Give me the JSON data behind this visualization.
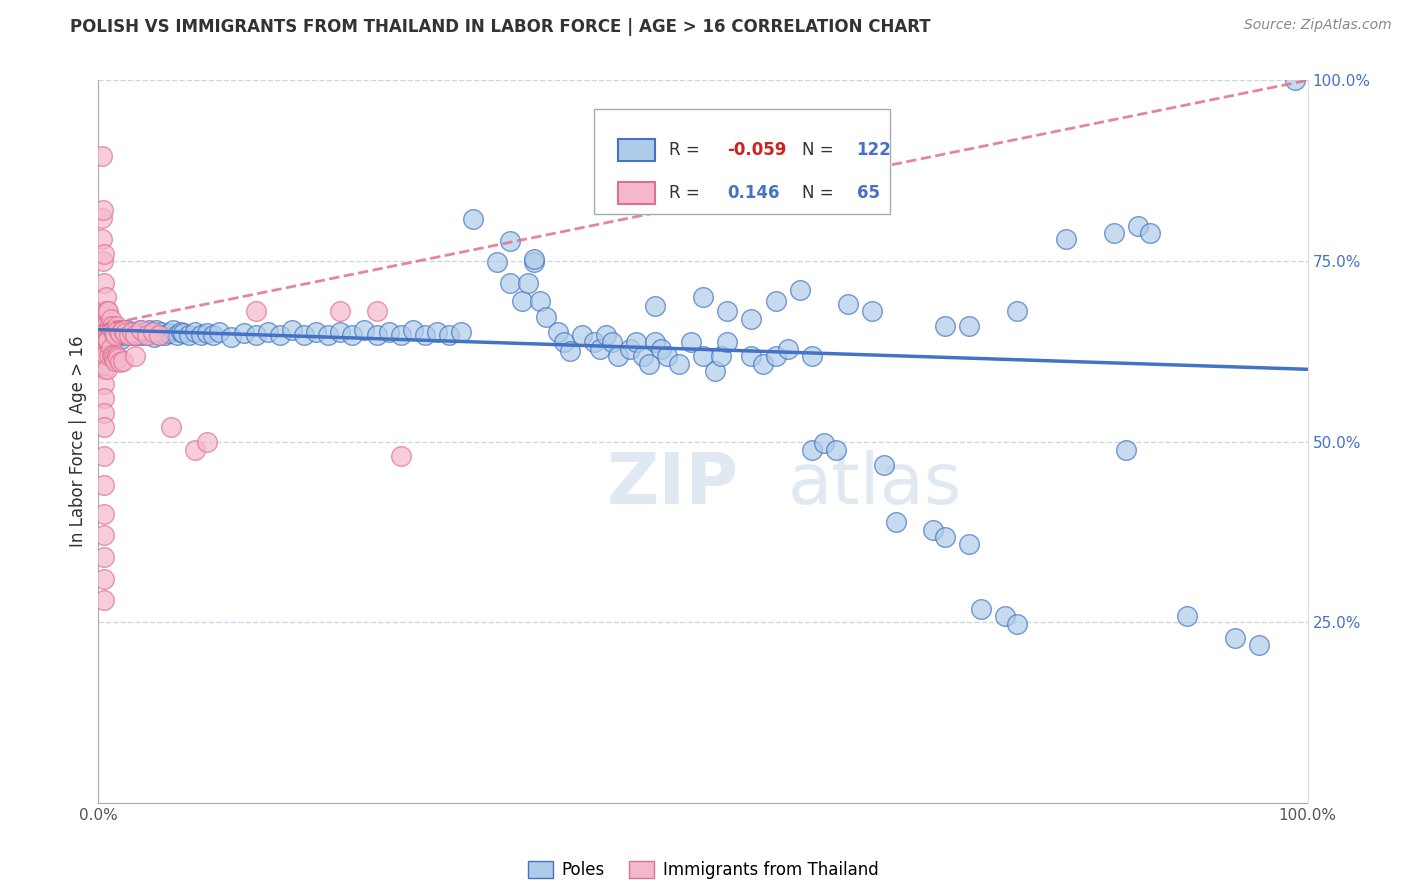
{
  "title": "POLISH VS IMMIGRANTS FROM THAILAND IN LABOR FORCE | AGE > 16 CORRELATION CHART",
  "source_text": "Source: ZipAtlas.com",
  "ylabel": "In Labor Force | Age > 16",
  "xlim": [
    0,
    1
  ],
  "ylim": [
    0,
    1
  ],
  "blue_R": "-0.059",
  "blue_N": "122",
  "pink_R": "0.146",
  "pink_N": "65",
  "legend_labels": [
    "Poles",
    "Immigrants from Thailand"
  ],
  "blue_color": "#aecce8",
  "pink_color": "#f5b8cb",
  "blue_line_color": "#4472c4",
  "pink_line_color": "#e07090",
  "watermark_zip": "ZIP",
  "watermark_atlas": "atlas",
  "background_color": "#ffffff",
  "grid_color": "#c8d8e8",
  "blue_dots": [
    [
      0.002,
      0.66
    ],
    [
      0.002,
      0.65
    ],
    [
      0.002,
      0.64
    ],
    [
      0.002,
      0.635
    ],
    [
      0.002,
      0.63
    ],
    [
      0.002,
      0.625
    ],
    [
      0.002,
      0.62
    ],
    [
      0.002,
      0.615
    ],
    [
      0.002,
      0.61
    ],
    [
      0.002,
      0.605
    ],
    [
      0.003,
      0.66
    ],
    [
      0.003,
      0.65
    ],
    [
      0.003,
      0.64
    ],
    [
      0.003,
      0.63
    ],
    [
      0.003,
      0.625
    ],
    [
      0.004,
      0.655
    ],
    [
      0.004,
      0.645
    ],
    [
      0.004,
      0.635
    ],
    [
      0.005,
      0.65
    ],
    [
      0.005,
      0.64
    ],
    [
      0.006,
      0.66
    ],
    [
      0.006,
      0.645
    ],
    [
      0.007,
      0.655
    ],
    [
      0.007,
      0.64
    ],
    [
      0.008,
      0.65
    ],
    [
      0.008,
      0.638
    ],
    [
      0.009,
      0.648
    ],
    [
      0.01,
      0.655
    ],
    [
      0.01,
      0.642
    ],
    [
      0.011,
      0.652
    ],
    [
      0.012,
      0.648
    ],
    [
      0.013,
      0.655
    ],
    [
      0.013,
      0.642
    ],
    [
      0.014,
      0.65
    ],
    [
      0.015,
      0.645
    ],
    [
      0.016,
      0.652
    ],
    [
      0.017,
      0.648
    ],
    [
      0.018,
      0.655
    ],
    [
      0.019,
      0.642
    ],
    [
      0.02,
      0.65
    ],
    [
      0.022,
      0.648
    ],
    [
      0.024,
      0.655
    ],
    [
      0.026,
      0.65
    ],
    [
      0.028,
      0.648
    ],
    [
      0.03,
      0.652
    ],
    [
      0.032,
      0.648
    ],
    [
      0.034,
      0.655
    ],
    [
      0.036,
      0.648
    ],
    [
      0.038,
      0.652
    ],
    [
      0.04,
      0.648
    ],
    [
      0.042,
      0.655
    ],
    [
      0.044,
      0.65
    ],
    [
      0.046,
      0.645
    ],
    [
      0.048,
      0.655
    ],
    [
      0.05,
      0.648
    ],
    [
      0.052,
      0.652
    ],
    [
      0.055,
      0.648
    ],
    [
      0.058,
      0.65
    ],
    [
      0.062,
      0.655
    ],
    [
      0.065,
      0.648
    ],
    [
      0.068,
      0.652
    ],
    [
      0.07,
      0.65
    ],
    [
      0.075,
      0.648
    ],
    [
      0.08,
      0.652
    ],
    [
      0.085,
      0.648
    ],
    [
      0.09,
      0.65
    ],
    [
      0.095,
      0.648
    ],
    [
      0.1,
      0.652
    ],
    [
      0.11,
      0.645
    ],
    [
      0.12,
      0.65
    ],
    [
      0.13,
      0.648
    ],
    [
      0.14,
      0.652
    ],
    [
      0.15,
      0.648
    ],
    [
      0.16,
      0.655
    ],
    [
      0.17,
      0.648
    ],
    [
      0.18,
      0.652
    ],
    [
      0.19,
      0.648
    ],
    [
      0.2,
      0.652
    ],
    [
      0.21,
      0.648
    ],
    [
      0.22,
      0.655
    ],
    [
      0.23,
      0.648
    ],
    [
      0.24,
      0.652
    ],
    [
      0.25,
      0.648
    ],
    [
      0.26,
      0.655
    ],
    [
      0.27,
      0.648
    ],
    [
      0.28,
      0.652
    ],
    [
      0.29,
      0.648
    ],
    [
      0.3,
      0.652
    ],
    [
      0.33,
      0.748
    ],
    [
      0.34,
      0.72
    ],
    [
      0.35,
      0.695
    ],
    [
      0.355,
      0.72
    ],
    [
      0.36,
      0.748
    ],
    [
      0.365,
      0.695
    ],
    [
      0.37,
      0.672
    ],
    [
      0.38,
      0.652
    ],
    [
      0.385,
      0.638
    ],
    [
      0.39,
      0.625
    ],
    [
      0.4,
      0.648
    ],
    [
      0.41,
      0.638
    ],
    [
      0.415,
      0.628
    ],
    [
      0.42,
      0.648
    ],
    [
      0.425,
      0.638
    ],
    [
      0.43,
      0.618
    ],
    [
      0.44,
      0.628
    ],
    [
      0.445,
      0.638
    ],
    [
      0.45,
      0.618
    ],
    [
      0.455,
      0.608
    ],
    [
      0.46,
      0.638
    ],
    [
      0.465,
      0.628
    ],
    [
      0.47,
      0.618
    ],
    [
      0.48,
      0.608
    ],
    [
      0.49,
      0.638
    ],
    [
      0.5,
      0.618
    ],
    [
      0.51,
      0.598
    ],
    [
      0.515,
      0.618
    ],
    [
      0.52,
      0.638
    ],
    [
      0.54,
      0.618
    ],
    [
      0.55,
      0.608
    ],
    [
      0.56,
      0.618
    ],
    [
      0.57,
      0.628
    ],
    [
      0.59,
      0.618
    ],
    [
      0.31,
      0.808
    ],
    [
      0.34,
      0.778
    ],
    [
      0.36,
      0.752
    ],
    [
      0.46,
      0.688
    ],
    [
      0.5,
      0.7
    ],
    [
      0.52,
      0.68
    ],
    [
      0.54,
      0.67
    ],
    [
      0.56,
      0.695
    ],
    [
      0.58,
      0.71
    ],
    [
      0.62,
      0.69
    ],
    [
      0.64,
      0.68
    ],
    [
      0.7,
      0.66
    ],
    [
      0.72,
      0.66
    ],
    [
      0.76,
      0.68
    ],
    [
      0.8,
      0.78
    ],
    [
      0.84,
      0.788
    ],
    [
      0.85,
      0.488
    ],
    [
      0.86,
      0.798
    ],
    [
      0.87,
      0.788
    ],
    [
      0.59,
      0.488
    ],
    [
      0.6,
      0.498
    ],
    [
      0.61,
      0.488
    ],
    [
      0.65,
      0.468
    ],
    [
      0.66,
      0.388
    ],
    [
      0.69,
      0.378
    ],
    [
      0.7,
      0.368
    ],
    [
      0.72,
      0.358
    ],
    [
      0.73,
      0.268
    ],
    [
      0.75,
      0.258
    ],
    [
      0.76,
      0.248
    ],
    [
      0.9,
      0.258
    ],
    [
      0.94,
      0.228
    ],
    [
      0.96,
      0.218
    ],
    [
      0.99,
      1.0
    ]
  ],
  "pink_dots": [
    [
      0.003,
      0.895
    ],
    [
      0.003,
      0.81
    ],
    [
      0.003,
      0.78
    ],
    [
      0.004,
      0.75
    ],
    [
      0.004,
      0.82
    ],
    [
      0.005,
      0.76
    ],
    [
      0.005,
      0.72
    ],
    [
      0.005,
      0.68
    ],
    [
      0.005,
      0.66
    ],
    [
      0.005,
      0.64
    ],
    [
      0.005,
      0.62
    ],
    [
      0.005,
      0.6
    ],
    [
      0.005,
      0.58
    ],
    [
      0.005,
      0.56
    ],
    [
      0.005,
      0.54
    ],
    [
      0.005,
      0.52
    ],
    [
      0.005,
      0.48
    ],
    [
      0.005,
      0.44
    ],
    [
      0.005,
      0.4
    ],
    [
      0.005,
      0.37
    ],
    [
      0.005,
      0.34
    ],
    [
      0.005,
      0.31
    ],
    [
      0.005,
      0.28
    ],
    [
      0.006,
      0.7
    ],
    [
      0.006,
      0.66
    ],
    [
      0.006,
      0.62
    ],
    [
      0.007,
      0.68
    ],
    [
      0.007,
      0.64
    ],
    [
      0.007,
      0.6
    ],
    [
      0.008,
      0.68
    ],
    [
      0.008,
      0.64
    ],
    [
      0.009,
      0.66
    ],
    [
      0.009,
      0.62
    ],
    [
      0.01,
      0.67
    ],
    [
      0.01,
      0.63
    ],
    [
      0.011,
      0.66
    ],
    [
      0.011,
      0.62
    ],
    [
      0.012,
      0.655
    ],
    [
      0.012,
      0.618
    ],
    [
      0.013,
      0.65
    ],
    [
      0.013,
      0.615
    ],
    [
      0.014,
      0.648
    ],
    [
      0.014,
      0.612
    ],
    [
      0.015,
      0.66
    ],
    [
      0.015,
      0.618
    ],
    [
      0.016,
      0.655
    ],
    [
      0.016,
      0.615
    ],
    [
      0.018,
      0.65
    ],
    [
      0.018,
      0.61
    ],
    [
      0.02,
      0.655
    ],
    [
      0.02,
      0.612
    ],
    [
      0.022,
      0.65
    ],
    [
      0.025,
      0.648
    ],
    [
      0.028,
      0.652
    ],
    [
      0.03,
      0.648
    ],
    [
      0.03,
      0.618
    ],
    [
      0.035,
      0.655
    ],
    [
      0.04,
      0.648
    ],
    [
      0.045,
      0.652
    ],
    [
      0.05,
      0.648
    ],
    [
      0.06,
      0.52
    ],
    [
      0.08,
      0.488
    ],
    [
      0.09,
      0.5
    ],
    [
      0.13,
      0.68
    ],
    [
      0.2,
      0.68
    ],
    [
      0.23,
      0.68
    ],
    [
      0.25,
      0.48
    ]
  ]
}
